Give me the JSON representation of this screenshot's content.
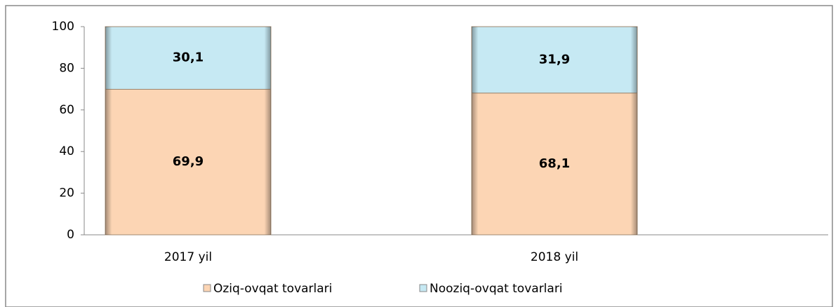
{
  "chart_data": {
    "type": "bar",
    "stacked": true,
    "categories": [
      "2017 yil",
      "2018 yil"
    ],
    "series": [
      {
        "name": "Oziq-ovqat tovarlari",
        "color": "#fcd5b4",
        "values": [
          69.9,
          68.1
        ],
        "value_labels": [
          "69,9",
          "68,1"
        ]
      },
      {
        "name": "Nooziq-ovqat tovarlari",
        "color": "#c6e9f3",
        "values": [
          30.1,
          31.9
        ],
        "value_labels": [
          "30,1",
          "31,9"
        ]
      }
    ],
    "ylim": [
      0,
      100
    ],
    "yticks": [
      0,
      20,
      40,
      60,
      80,
      100
    ],
    "grid": false,
    "legend": "bottom"
  }
}
